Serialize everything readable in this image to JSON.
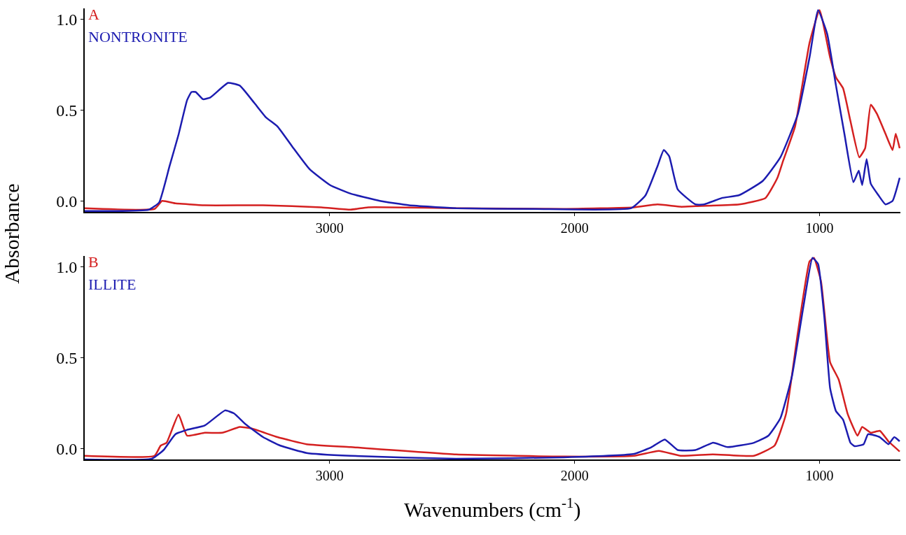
{
  "chart_data": [
    {
      "type": "line",
      "title": "A",
      "ylabel": "Absorbance",
      "xlim": [
        4000,
        670
      ],
      "xticks": [
        3000,
        2000,
        1000
      ],
      "ylim": [
        -0.06,
        1.06
      ],
      "yticks": [
        {
          "value": 0,
          "label": "0.0"
        },
        {
          "value": 0.5,
          "label": "0.5"
        },
        {
          "value": 1,
          "label": "1.0"
        }
      ],
      "series": [
        {
          "color": "#d42020",
          "x": [
            4000,
            3715,
            3684,
            3630,
            3510,
            3272,
            3034,
            2914,
            2843,
            2484,
            2044,
            1757,
            1662,
            1567,
            1507,
            1328,
            1221,
            1172,
            1149,
            1100,
            1041,
            1000,
            957,
            933,
            904,
            874,
            838,
            814,
            791,
            766,
            731,
            702,
            689,
            673
          ],
          "values": [
            -0.04,
            -0.044,
            0.0,
            -0.013,
            -0.024,
            -0.024,
            -0.035,
            -0.048,
            -0.035,
            -0.04,
            -0.044,
            -0.035,
            -0.019,
            -0.032,
            -0.029,
            -0.019,
            0.016,
            0.127,
            0.22,
            0.41,
            0.87,
            1.05,
            0.79,
            0.68,
            0.62,
            0.44,
            0.24,
            0.29,
            0.53,
            0.48,
            0.37,
            0.28,
            0.37,
            0.29
          ]
        },
        {
          "name": "NONTRONITE",
          "color": "#1c1cb0",
          "x": [
            4000,
            3738,
            3696,
            3654,
            3617,
            3582,
            3564,
            3547,
            3517,
            3487,
            3415,
            3367,
            3308,
            3260,
            3213,
            3153,
            3082,
            2998,
            2914,
            2795,
            2676,
            2484,
            2163,
            1769,
            1711,
            1662,
            1636,
            1614,
            1579,
            1507,
            1471,
            1399,
            1328,
            1232,
            1160,
            1089,
            1041,
            1006,
            969,
            933,
            898,
            862,
            840,
            826,
            808,
            791,
            760,
            731,
            702,
            673
          ],
          "values": [
            -0.056,
            -0.048,
            -0.008,
            0.19,
            0.365,
            0.555,
            0.6,
            0.6,
            0.56,
            0.57,
            0.65,
            0.635,
            0.54,
            0.46,
            0.41,
            0.3,
            0.175,
            0.087,
            0.04,
            0.0,
            -0.024,
            -0.04,
            -0.044,
            -0.04,
            0.03,
            0.19,
            0.28,
            0.246,
            0.063,
            -0.019,
            -0.019,
            0.016,
            0.032,
            0.11,
            0.24,
            0.476,
            0.79,
            1.05,
            0.92,
            0.635,
            0.365,
            0.103,
            0.167,
            0.087,
            0.23,
            0.095,
            0.032,
            -0.019,
            0.0,
            0.127
          ]
        }
      ]
    },
    {
      "type": "line",
      "title": "B",
      "xlabel": "Wavenumbers (cm$^{-1}$)",
      "xlim": [
        4000,
        670
      ],
      "xticks": [
        3000,
        2000,
        1000
      ],
      "ylim": [
        -0.06,
        1.06
      ],
      "yticks": [
        {
          "value": 0,
          "label": "0.0"
        },
        {
          "value": 0.5,
          "label": "0.5"
        },
        {
          "value": 1,
          "label": "1.0"
        }
      ],
      "series": [
        {
          "color": "#d42020",
          "x": [
            4000,
            3715,
            3690,
            3666,
            3617,
            3582,
            3510,
            3439,
            3367,
            3320,
            3213,
            3094,
            2914,
            2484,
            2044,
            1757,
            1656,
            1567,
            1435,
            1268,
            1184,
            1137,
            1089,
            1041,
            1023,
            994,
            957,
            922,
            885,
            845,
            826,
            791,
            754,
            719,
            673
          ],
          "values": [
            -0.04,
            -0.04,
            0.016,
            0.032,
            0.187,
            0.071,
            0.087,
            0.087,
            0.119,
            0.111,
            0.063,
            0.024,
            0.008,
            -0.032,
            -0.044,
            -0.04,
            -0.013,
            -0.04,
            -0.032,
            -0.04,
            0.016,
            0.19,
            0.635,
            1.03,
            1.05,
            0.92,
            0.476,
            0.38,
            0.19,
            0.071,
            0.119,
            0.087,
            0.098,
            0.04,
            -0.016
          ]
        },
        {
          "name": "ILLITE",
          "color": "#1c1cb0",
          "x": [
            4000,
            3726,
            3678,
            3630,
            3582,
            3510,
            3427,
            3391,
            3344,
            3272,
            3201,
            3094,
            2914,
            2484,
            2044,
            1757,
            1686,
            1632,
            1579,
            1507,
            1435,
            1375,
            1268,
            1209,
            1160,
            1113,
            1065,
            1029,
            1006,
            981,
            957,
            933,
            904,
            874,
            857,
            820,
            802,
            754,
            719,
            695,
            673
          ],
          "values": [
            -0.06,
            -0.056,
            -0.008,
            0.079,
            0.103,
            0.127,
            0.21,
            0.194,
            0.135,
            0.063,
            0.016,
            -0.024,
            -0.04,
            -0.056,
            -0.048,
            -0.029,
            0.008,
            0.05,
            -0.008,
            -0.008,
            0.032,
            0.008,
            0.032,
            0.071,
            0.167,
            0.397,
            0.79,
            1.05,
            1.016,
            0.73,
            0.333,
            0.206,
            0.159,
            0.032,
            0.013,
            0.024,
            0.079,
            0.063,
            0.024,
            0.063,
            0.04
          ]
        }
      ]
    }
  ]
}
